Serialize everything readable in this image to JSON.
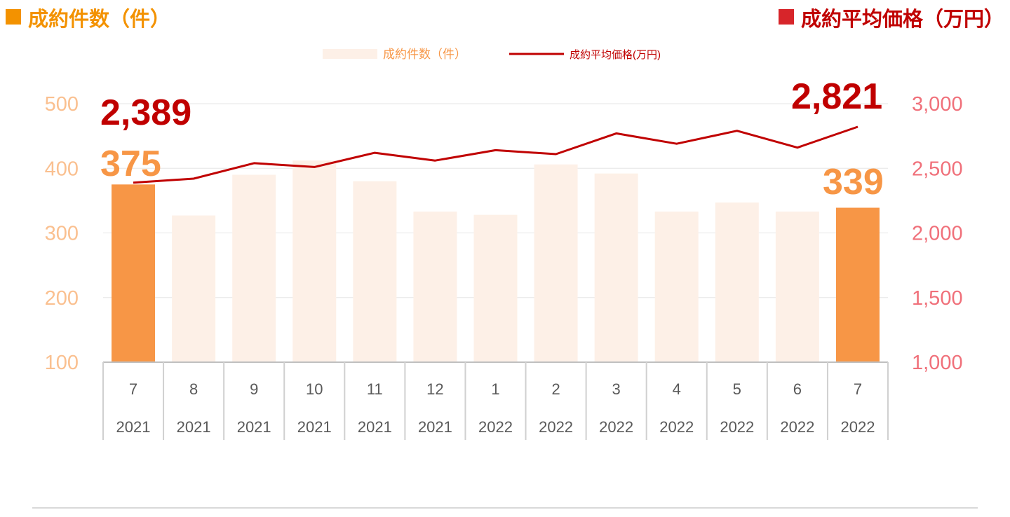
{
  "header": {
    "left_title": "成約件数（件）",
    "right_title": "成約平均価格（万円）",
    "left_color": "#f39200",
    "right_color": "#c00000"
  },
  "chart_data": {
    "type": "bar",
    "legend": {
      "position": "top-center",
      "bar_label": "成約件数（件）",
      "line_label": "成約平均価格(万円)"
    },
    "categories": [
      {
        "month": "7",
        "year": "2021"
      },
      {
        "month": "8",
        "year": "2021"
      },
      {
        "month": "9",
        "year": "2021"
      },
      {
        "month": "10",
        "year": "2021"
      },
      {
        "month": "11",
        "year": "2021"
      },
      {
        "month": "12",
        "year": "2021"
      },
      {
        "month": "1",
        "year": "2022"
      },
      {
        "month": "2",
        "year": "2022"
      },
      {
        "month": "3",
        "year": "2022"
      },
      {
        "month": "4",
        "year": "2022"
      },
      {
        "month": "5",
        "year": "2022"
      },
      {
        "month": "6",
        "year": "2022"
      },
      {
        "month": "7",
        "year": "2022"
      }
    ],
    "series": [
      {
        "name": "成約件数（件）",
        "type": "bar",
        "axis": "left",
        "values": [
          375,
          327,
          390,
          412,
          380,
          333,
          328,
          406,
          392,
          333,
          347,
          333,
          339
        ],
        "highlight": [
          0,
          12
        ],
        "color_highlight": "#f79646",
        "color_normal": "#fdf0e7"
      },
      {
        "name": "成約平均価格(万円)",
        "type": "line",
        "axis": "right",
        "values": [
          2389,
          2420,
          2540,
          2510,
          2620,
          2560,
          2640,
          2610,
          2770,
          2690,
          2790,
          2660,
          2821
        ],
        "color": "#c00000"
      }
    ],
    "left_axis": {
      "ylim": [
        100,
        500
      ],
      "ticks": [
        "100",
        "200",
        "300",
        "400",
        "500"
      ],
      "color": "#fac090"
    },
    "right_axis": {
      "ylim": [
        1000,
        3000
      ],
      "ticks": [
        "1,000",
        "1,500",
        "2,000",
        "2,500",
        "3,000"
      ],
      "color": "#f0707a"
    },
    "annotations": {
      "first_price": "2,389",
      "last_price": "2,821",
      "first_count": "375",
      "last_count": "339"
    },
    "grid": true
  }
}
